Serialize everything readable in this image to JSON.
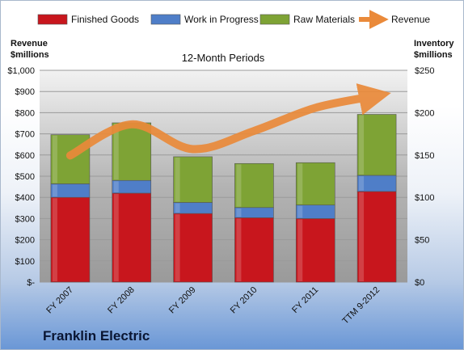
{
  "chart_data": {
    "type": "bar",
    "stacked": true,
    "title": "12-Month Periods",
    "company": "Franklin Electric",
    "categories": [
      "FY 2007",
      "FY 2008",
      "FY 2009",
      "FY 2010",
      "FY 2011",
      "TTM 9-2012"
    ],
    "series": [
      {
        "name": "Finished Goods",
        "axis": "right",
        "color": "#c8161d",
        "values": [
          100,
          105,
          81,
          76,
          75,
          107
        ]
      },
      {
        "name": "Work in Progress",
        "axis": "right",
        "color": "#4f7ec8",
        "values": [
          16,
          15,
          13,
          12,
          16,
          19
        ]
      },
      {
        "name": "Raw Materials",
        "axis": "right",
        "color": "#7ea335",
        "values": [
          58,
          68,
          54,
          52,
          50,
          72
        ]
      },
      {
        "name": "Revenue",
        "axis": "left",
        "type": "line",
        "color": "#ea8a3a",
        "values": [
          598,
          745,
          628,
          714,
          823,
          880
        ]
      }
    ],
    "left_axis": {
      "label_line1": "Revenue",
      "label_line2": "$millions",
      "min": 0,
      "max": 1000,
      "step": 100,
      "tick_labels": [
        "$-",
        "$100",
        "$200",
        "$300",
        "$400",
        "$500",
        "$600",
        "$700",
        "$800",
        "$900",
        "$1,000"
      ]
    },
    "right_axis": {
      "label_line1": "Inventory",
      "label_line2": "$millions",
      "min": 0,
      "max": 250,
      "step": 50,
      "tick_labels": [
        "$0",
        "$50",
        "$100",
        "$150",
        "$200",
        "$250"
      ]
    },
    "legend_position": "top",
    "grid": true
  }
}
